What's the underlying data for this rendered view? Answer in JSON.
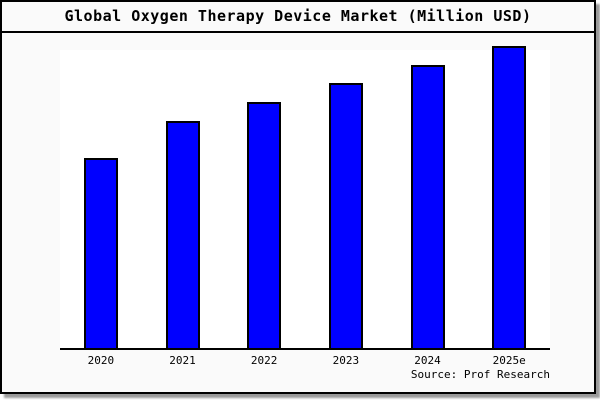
{
  "header": {
    "title": "Global Oxygen Therapy Device Market (Million USD)"
  },
  "footer": {
    "source_label": "Source: Prof Research"
  },
  "colors": {
    "bar_fill": "#0000ff",
    "bar_border": "#000000",
    "canvas_bg": "#fafafa",
    "plot_bg": "#ffffff",
    "frame_border": "#000000",
    "shadow": "#999999"
  },
  "chart_data": {
    "type": "bar",
    "title": "Global Oxygen Therapy Device Market (Million USD)",
    "categories": [
      "2020",
      "2021",
      "2022",
      "2023",
      "2024",
      "2025e"
    ],
    "values": [
      188,
      225,
      244,
      263,
      281,
      300
    ],
    "value_unit": "relative bar height in px (y-axis has no labels)",
    "xlabel": "",
    "ylabel": "",
    "ylim": [
      0,
      300
    ],
    "grid": false,
    "legend": false,
    "annotations": [
      "Source: Prof Research"
    ]
  }
}
